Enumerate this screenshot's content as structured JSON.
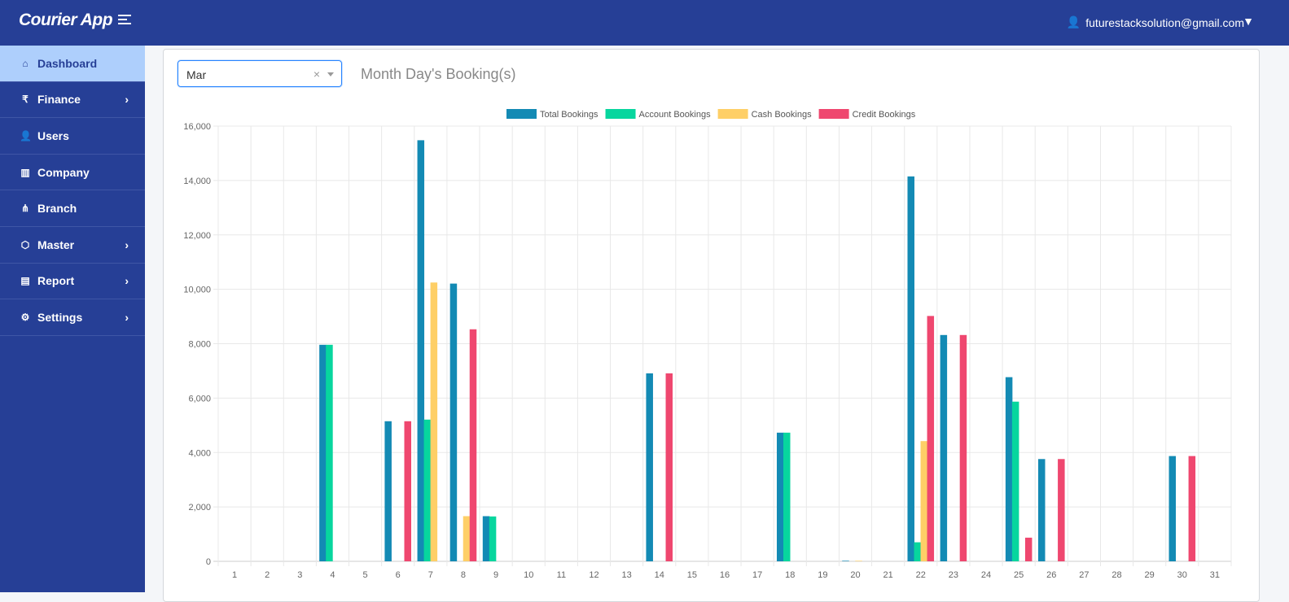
{
  "header": {
    "brand": "Courier App",
    "user_email": "futurestacksolution@gmail.com"
  },
  "sidebar": {
    "items": [
      {
        "label": "Dashboard",
        "icon": "home-icon",
        "glyph": "⌂",
        "active": true,
        "submenu": false
      },
      {
        "label": "Finance",
        "icon": "rupee-icon",
        "glyph": "₹",
        "submenu": true
      },
      {
        "label": "Users",
        "icon": "user-icon",
        "glyph": "👤",
        "submenu": false
      },
      {
        "label": "Company",
        "icon": "building-icon",
        "glyph": "▥",
        "submenu": false
      },
      {
        "label": "Branch",
        "icon": "sitemap-icon",
        "glyph": "⋔",
        "submenu": false
      },
      {
        "label": "Master",
        "icon": "cube-icon",
        "glyph": "⬡",
        "submenu": true
      },
      {
        "label": "Report",
        "icon": "file-icon",
        "glyph": "▤",
        "submenu": true
      },
      {
        "label": "Settings",
        "icon": "gear-icon",
        "glyph": "⚙",
        "submenu": true
      }
    ]
  },
  "filter": {
    "month": "Mar",
    "clear": "×"
  },
  "chart_title": "Month Day's Booking(s)",
  "chart_data": {
    "type": "bar",
    "legend_position": "top",
    "grid": true,
    "ylim": [
      0,
      16000
    ],
    "yticks": [
      "0",
      "2,000",
      "4,000",
      "6,000",
      "8,000",
      "10,000",
      "12,000",
      "14,000",
      "16,000"
    ],
    "categories": [
      "1",
      "2",
      "3",
      "4",
      "5",
      "6",
      "7",
      "8",
      "9",
      "10",
      "11",
      "12",
      "13",
      "14",
      "15",
      "16",
      "17",
      "18",
      "19",
      "20",
      "21",
      "22",
      "23",
      "24",
      "25",
      "26",
      "27",
      "28",
      "29",
      "30",
      "31"
    ],
    "series": [
      {
        "name": "Total Bookings",
        "color": "#138ab4",
        "values": [
          0,
          0,
          0,
          7960,
          0,
          5150,
          15480,
          10210,
          1660,
          0,
          0,
          0,
          0,
          6910,
          0,
          0,
          0,
          4730,
          0,
          20,
          0,
          14150,
          8320,
          0,
          6770,
          3760,
          0,
          0,
          0,
          3870,
          0
        ]
      },
      {
        "name": "Account Bookings",
        "color": "#07d69e",
        "values": [
          0,
          0,
          0,
          7960,
          0,
          0,
          5210,
          0,
          1650,
          0,
          0,
          0,
          0,
          0,
          0,
          0,
          0,
          4730,
          0,
          0,
          0,
          700,
          0,
          0,
          5870,
          0,
          0,
          0,
          0,
          0,
          0
        ]
      },
      {
        "name": "Cash Bookings",
        "color": "#fecf67",
        "values": [
          0,
          0,
          0,
          0,
          0,
          0,
          10250,
          1660,
          0,
          0,
          0,
          0,
          0,
          0,
          0,
          0,
          0,
          0,
          0,
          20,
          0,
          4420,
          0,
          0,
          0,
          0,
          0,
          0,
          0,
          0,
          0
        ]
      },
      {
        "name": "Credit Bookings",
        "color": "#ef476f",
        "values": [
          0,
          0,
          0,
          0,
          0,
          5150,
          0,
          8530,
          0,
          0,
          0,
          0,
          0,
          6910,
          0,
          0,
          0,
          0,
          0,
          0,
          0,
          9020,
          8320,
          0,
          870,
          3760,
          0,
          0,
          0,
          3870,
          0
        ]
      }
    ]
  }
}
